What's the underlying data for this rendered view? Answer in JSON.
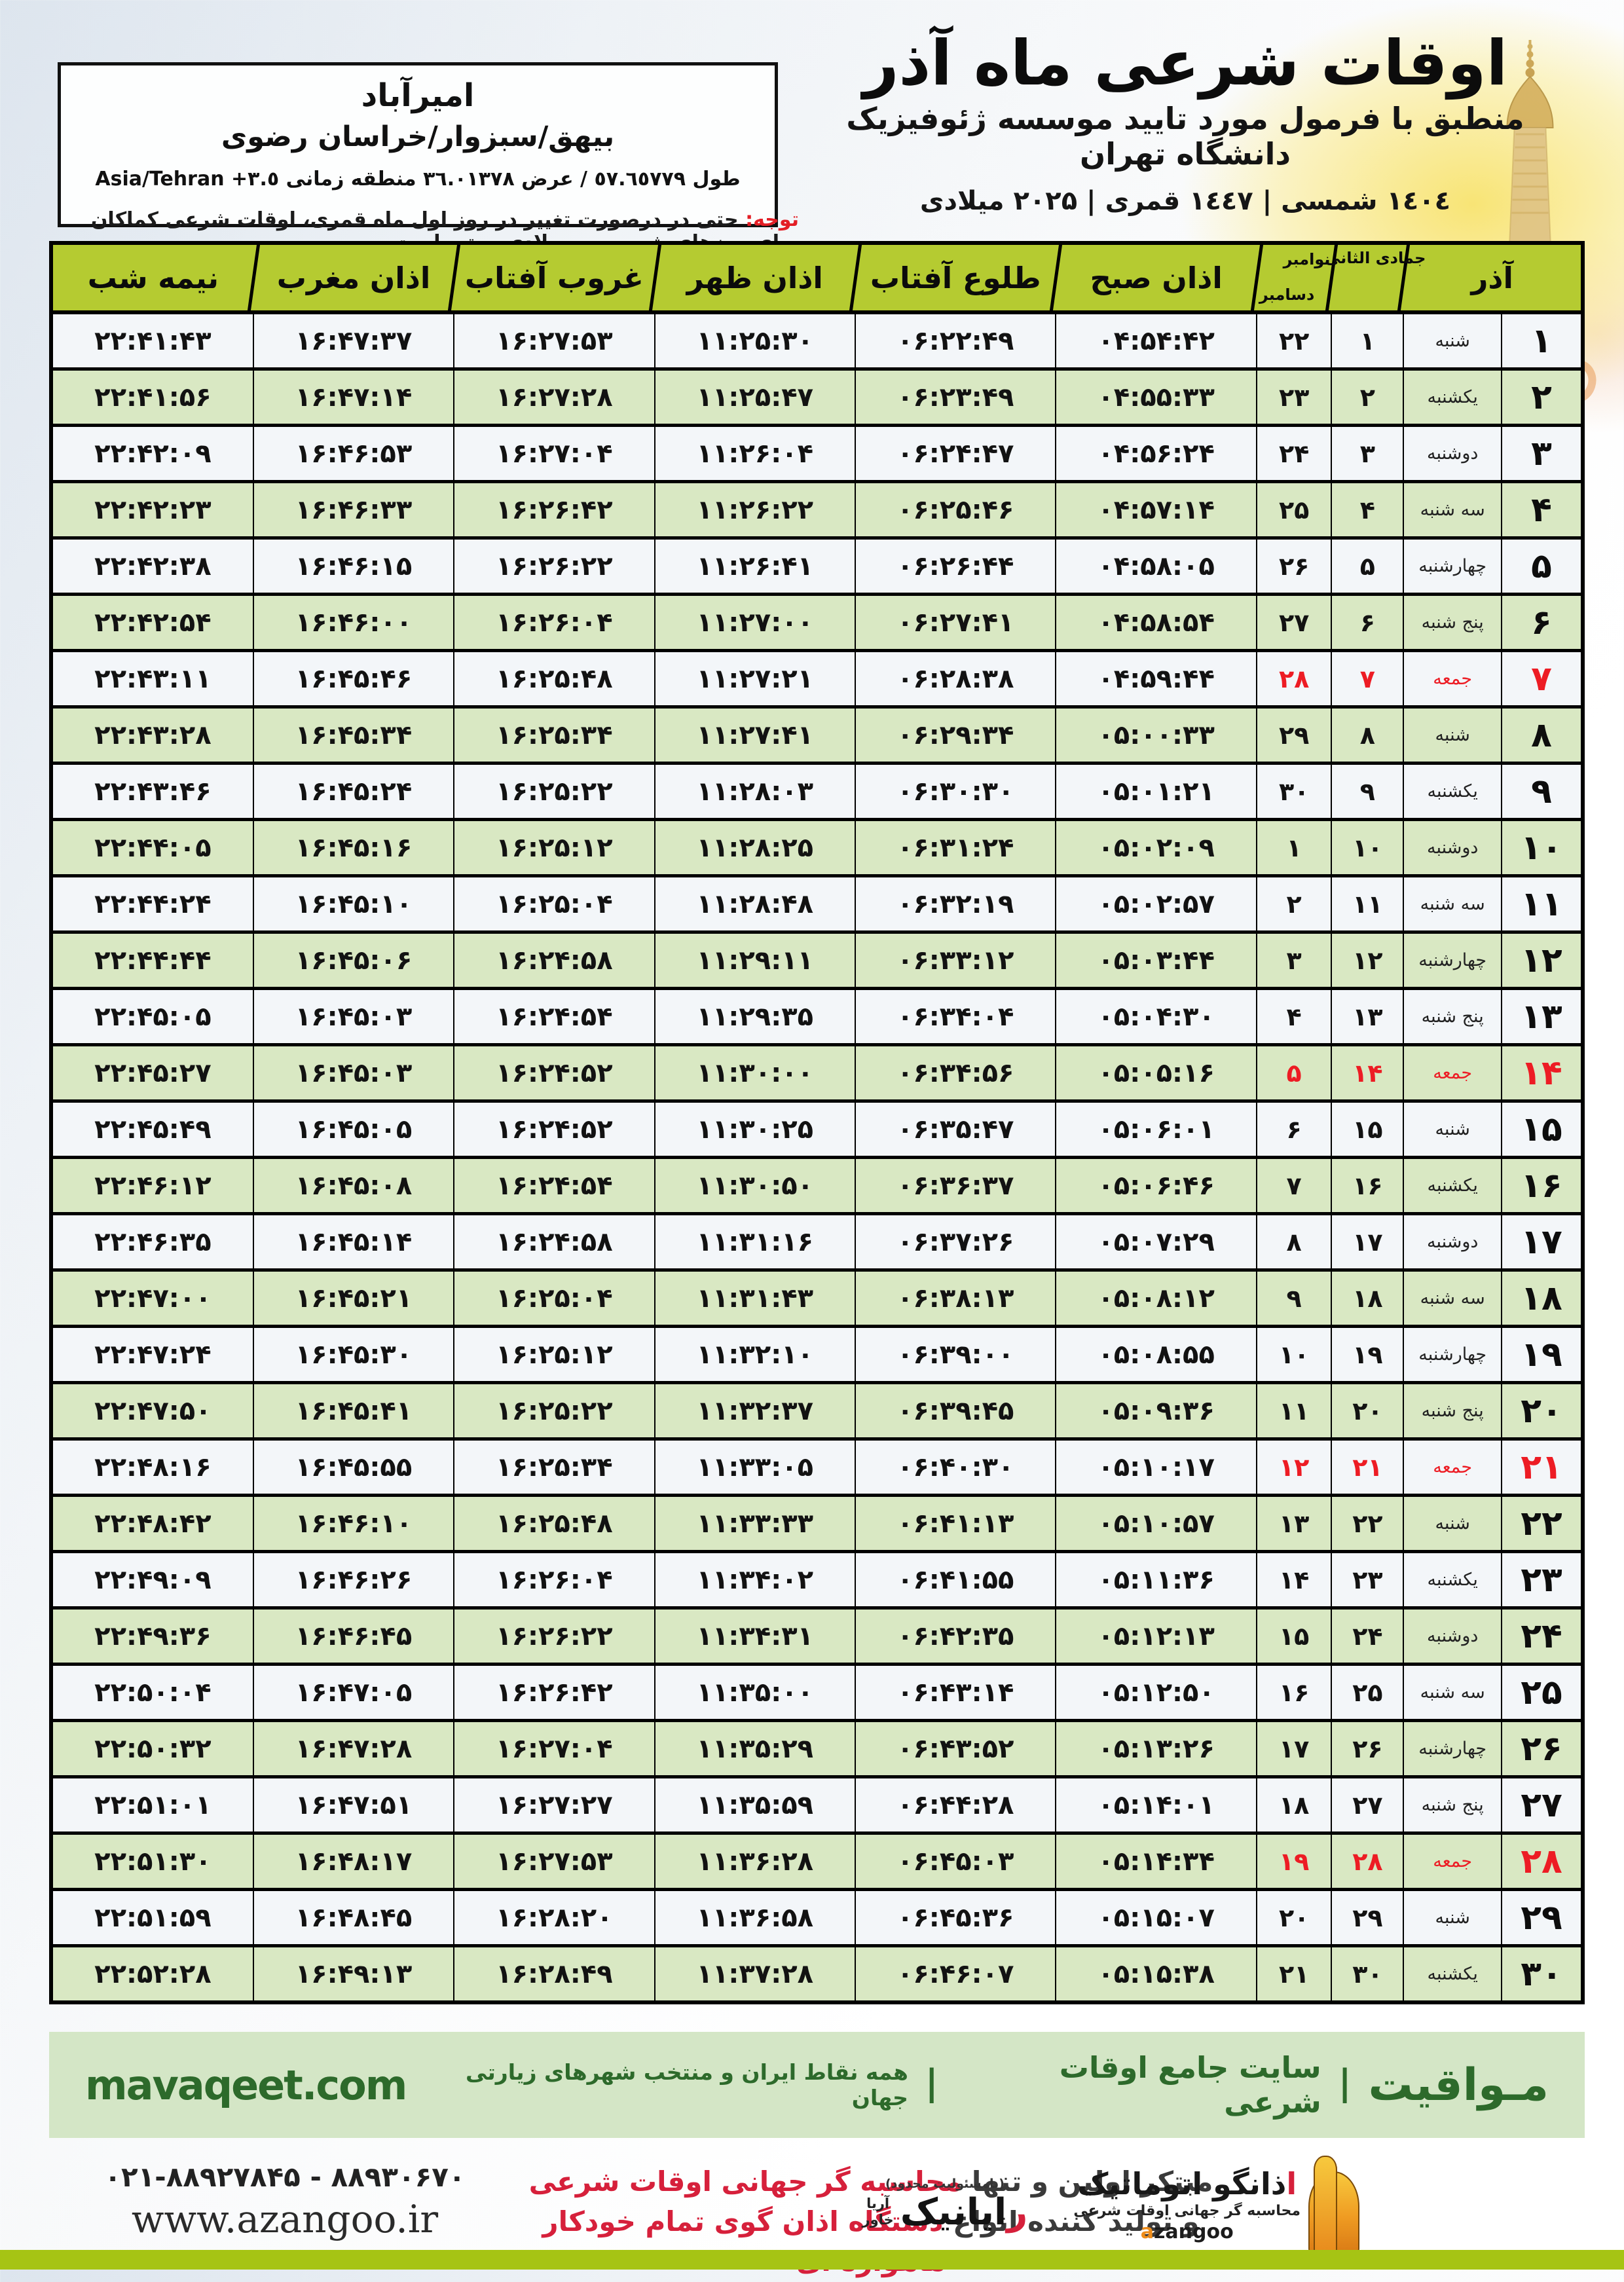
{
  "meta": {
    "title": "اوقات شرعی ماه آذر",
    "subtitle": "منطبق با فرمول مورد تایید موسسه ژئوفیزیک دانشگاه تهران",
    "dates": "۱٤۰٤ شمسی | ۱٤٤۷ قمری | ۲۰۲۵ میلادی"
  },
  "location": {
    "name": "امیرآباد",
    "region": "بیهق/سبزوار/خراسان رضوی",
    "coords_fa": "طول ٥٧.٦٥٧٧٩ / عرض ٣٦.٠١٣٧٨ منطقه زمانی",
    "tz": "Asia/Tehran +٣.٥"
  },
  "notice": {
    "label": "توجه:",
    "text": "حتی در درصورت تغییر در روز اول ماه قمری، اوقات شرعی کماکان برای روزهای شمسی و میلادی معتبر است."
  },
  "table": {
    "headers": {
      "azar": "آذر",
      "jumada_label": "جمادی الثانی",
      "nov_label": "نوامبر",
      "dec_label": "دسامبر",
      "sobh": "اذان صبح",
      "tolu": "طلوع آفتاب",
      "zohr": "اذان ظهر",
      "ghorub": "غروب آفتاب",
      "maghreb": "اذان مغرب",
      "nimeshab": "نیمه شب"
    },
    "rows": [
      {
        "azar": "۱",
        "weekday": "شنبه",
        "jumada": "۱",
        "greg": "۲۲",
        "sobh": "۰۴:۵۴:۴۲",
        "tolu": "۰۶:۲۲:۴۹",
        "zohr": "۱۱:۲۵:۳۰",
        "ghorub": "۱۶:۲۷:۵۳",
        "maghreb": "۱۶:۴۷:۳۷",
        "nimeshab": "۲۲:۴۱:۴۳",
        "friday": false
      },
      {
        "azar": "۲",
        "weekday": "یکشنبه",
        "jumada": "۲",
        "greg": "۲۳",
        "sobh": "۰۴:۵۵:۳۳",
        "tolu": "۰۶:۲۳:۴۹",
        "zohr": "۱۱:۲۵:۴۷",
        "ghorub": "۱۶:۲۷:۲۸",
        "maghreb": "۱۶:۴۷:۱۴",
        "nimeshab": "۲۲:۴۱:۵۶",
        "friday": false
      },
      {
        "azar": "۳",
        "weekday": "دوشنبه",
        "jumada": "۳",
        "greg": "۲۴",
        "sobh": "۰۴:۵۶:۲۴",
        "tolu": "۰۶:۲۴:۴۷",
        "zohr": "۱۱:۲۶:۰۴",
        "ghorub": "۱۶:۲۷:۰۴",
        "maghreb": "۱۶:۴۶:۵۳",
        "nimeshab": "۲۲:۴۲:۰۹",
        "friday": false
      },
      {
        "azar": "۴",
        "weekday": "سه شنبه",
        "jumada": "۴",
        "greg": "۲۵",
        "sobh": "۰۴:۵۷:۱۴",
        "tolu": "۰۶:۲۵:۴۶",
        "zohr": "۱۱:۲۶:۲۲",
        "ghorub": "۱۶:۲۶:۴۲",
        "maghreb": "۱۶:۴۶:۳۳",
        "nimeshab": "۲۲:۴۲:۲۳",
        "friday": false
      },
      {
        "azar": "۵",
        "weekday": "چهارشنبه",
        "jumada": "۵",
        "greg": "۲۶",
        "sobh": "۰۴:۵۸:۰۵",
        "tolu": "۰۶:۲۶:۴۴",
        "zohr": "۱۱:۲۶:۴۱",
        "ghorub": "۱۶:۲۶:۲۲",
        "maghreb": "۱۶:۴۶:۱۵",
        "nimeshab": "۲۲:۴۲:۳۸",
        "friday": false
      },
      {
        "azar": "۶",
        "weekday": "پنج شنبه",
        "jumada": "۶",
        "greg": "۲۷",
        "sobh": "۰۴:۵۸:۵۴",
        "tolu": "۰۶:۲۷:۴۱",
        "zohr": "۱۱:۲۷:۰۰",
        "ghorub": "۱۶:۲۶:۰۴",
        "maghreb": "۱۶:۴۶:۰۰",
        "nimeshab": "۲۲:۴۲:۵۴",
        "friday": false
      },
      {
        "azar": "۷",
        "weekday": "جمعه",
        "jumada": "۷",
        "greg": "۲۸",
        "sobh": "۰۴:۵۹:۴۴",
        "tolu": "۰۶:۲۸:۳۸",
        "zohr": "۱۱:۲۷:۲۱",
        "ghorub": "۱۶:۲۵:۴۸",
        "maghreb": "۱۶:۴۵:۴۶",
        "nimeshab": "۲۲:۴۳:۱۱",
        "friday": true
      },
      {
        "azar": "۸",
        "weekday": "شنبه",
        "jumada": "۸",
        "greg": "۲۹",
        "sobh": "۰۵:۰۰:۳۳",
        "tolu": "۰۶:۲۹:۳۴",
        "zohr": "۱۱:۲۷:۴۱",
        "ghorub": "۱۶:۲۵:۳۴",
        "maghreb": "۱۶:۴۵:۳۴",
        "nimeshab": "۲۲:۴۳:۲۸",
        "friday": false
      },
      {
        "azar": "۹",
        "weekday": "یکشنبه",
        "jumada": "۹",
        "greg": "۳۰",
        "sobh": "۰۵:۰۱:۲۱",
        "tolu": "۰۶:۳۰:۳۰",
        "zohr": "۱۱:۲۸:۰۳",
        "ghorub": "۱۶:۲۵:۲۲",
        "maghreb": "۱۶:۴۵:۲۴",
        "nimeshab": "۲۲:۴۳:۴۶",
        "friday": false
      },
      {
        "azar": "۱۰",
        "weekday": "دوشنبه",
        "jumada": "۱۰",
        "greg": "۱",
        "sobh": "۰۵:۰۲:۰۹",
        "tolu": "۰۶:۳۱:۲۴",
        "zohr": "۱۱:۲۸:۲۵",
        "ghorub": "۱۶:۲۵:۱۲",
        "maghreb": "۱۶:۴۵:۱۶",
        "nimeshab": "۲۲:۴۴:۰۵",
        "friday": false
      },
      {
        "azar": "۱۱",
        "weekday": "سه شنبه",
        "jumada": "۱۱",
        "greg": "۲",
        "sobh": "۰۵:۰۲:۵۷",
        "tolu": "۰۶:۳۲:۱۹",
        "zohr": "۱۱:۲۸:۴۸",
        "ghorub": "۱۶:۲۵:۰۴",
        "maghreb": "۱۶:۴۵:۱۰",
        "nimeshab": "۲۲:۴۴:۲۴",
        "friday": false
      },
      {
        "azar": "۱۲",
        "weekday": "چهارشنبه",
        "jumada": "۱۲",
        "greg": "۳",
        "sobh": "۰۵:۰۳:۴۴",
        "tolu": "۰۶:۳۳:۱۲",
        "zohr": "۱۱:۲۹:۱۱",
        "ghorub": "۱۶:۲۴:۵۸",
        "maghreb": "۱۶:۴۵:۰۶",
        "nimeshab": "۲۲:۴۴:۴۴",
        "friday": false
      },
      {
        "azar": "۱۳",
        "weekday": "پنج شنبه",
        "jumada": "۱۳",
        "greg": "۴",
        "sobh": "۰۵:۰۴:۳۰",
        "tolu": "۰۶:۳۴:۰۴",
        "zohr": "۱۱:۲۹:۳۵",
        "ghorub": "۱۶:۲۴:۵۴",
        "maghreb": "۱۶:۴۵:۰۳",
        "nimeshab": "۲۲:۴۵:۰۵",
        "friday": false
      },
      {
        "azar": "۱۴",
        "weekday": "جمعه",
        "jumada": "۱۴",
        "greg": "۵",
        "sobh": "۰۵:۰۵:۱۶",
        "tolu": "۰۶:۳۴:۵۶",
        "zohr": "۱۱:۳۰:۰۰",
        "ghorub": "۱۶:۲۴:۵۲",
        "maghreb": "۱۶:۴۵:۰۳",
        "nimeshab": "۲۲:۴۵:۲۷",
        "friday": true
      },
      {
        "azar": "۱۵",
        "weekday": "شنبه",
        "jumada": "۱۵",
        "greg": "۶",
        "sobh": "۰۵:۰۶:۰۱",
        "tolu": "۰۶:۳۵:۴۷",
        "zohr": "۱۱:۳۰:۲۵",
        "ghorub": "۱۶:۲۴:۵۲",
        "maghreb": "۱۶:۴۵:۰۵",
        "nimeshab": "۲۲:۴۵:۴۹",
        "friday": false
      },
      {
        "azar": "۱۶",
        "weekday": "یکشنبه",
        "jumada": "۱۶",
        "greg": "۷",
        "sobh": "۰۵:۰۶:۴۶",
        "tolu": "۰۶:۳۶:۳۷",
        "zohr": "۱۱:۳۰:۵۰",
        "ghorub": "۱۶:۲۴:۵۴",
        "maghreb": "۱۶:۴۵:۰۸",
        "nimeshab": "۲۲:۴۶:۱۲",
        "friday": false
      },
      {
        "azar": "۱۷",
        "weekday": "دوشنبه",
        "jumada": "۱۷",
        "greg": "۸",
        "sobh": "۰۵:۰۷:۲۹",
        "tolu": "۰۶:۳۷:۲۶",
        "zohr": "۱۱:۳۱:۱۶",
        "ghorub": "۱۶:۲۴:۵۸",
        "maghreb": "۱۶:۴۵:۱۴",
        "nimeshab": "۲۲:۴۶:۳۵",
        "friday": false
      },
      {
        "azar": "۱۸",
        "weekday": "سه شنبه",
        "jumada": "۱۸",
        "greg": "۹",
        "sobh": "۰۵:۰۸:۱۲",
        "tolu": "۰۶:۳۸:۱۳",
        "zohr": "۱۱:۳۱:۴۳",
        "ghorub": "۱۶:۲۵:۰۴",
        "maghreb": "۱۶:۴۵:۲۱",
        "nimeshab": "۲۲:۴۷:۰۰",
        "friday": false
      },
      {
        "azar": "۱۹",
        "weekday": "چهارشنبه",
        "jumada": "۱۹",
        "greg": "۱۰",
        "sobh": "۰۵:۰۸:۵۵",
        "tolu": "۰۶:۳۹:۰۰",
        "zohr": "۱۱:۳۲:۱۰",
        "ghorub": "۱۶:۲۵:۱۲",
        "maghreb": "۱۶:۴۵:۳۰",
        "nimeshab": "۲۲:۴۷:۲۴",
        "friday": false
      },
      {
        "azar": "۲۰",
        "weekday": "پنج شنبه",
        "jumada": "۲۰",
        "greg": "۱۱",
        "sobh": "۰۵:۰۹:۳۶",
        "tolu": "۰۶:۳۹:۴۵",
        "zohr": "۱۱:۳۲:۳۷",
        "ghorub": "۱۶:۲۵:۲۲",
        "maghreb": "۱۶:۴۵:۴۱",
        "nimeshab": "۲۲:۴۷:۵۰",
        "friday": false
      },
      {
        "azar": "۲۱",
        "weekday": "جمعه",
        "jumada": "۲۱",
        "greg": "۱۲",
        "sobh": "۰۵:۱۰:۱۷",
        "tolu": "۰۶:۴۰:۳۰",
        "zohr": "۱۱:۳۳:۰۵",
        "ghorub": "۱۶:۲۵:۳۴",
        "maghreb": "۱۶:۴۵:۵۵",
        "nimeshab": "۲۲:۴۸:۱۶",
        "friday": true
      },
      {
        "azar": "۲۲",
        "weekday": "شنبه",
        "jumada": "۲۲",
        "greg": "۱۳",
        "sobh": "۰۵:۱۰:۵۷",
        "tolu": "۰۶:۴۱:۱۳",
        "zohr": "۱۱:۳۳:۳۳",
        "ghorub": "۱۶:۲۵:۴۸",
        "maghreb": "۱۶:۴۶:۱۰",
        "nimeshab": "۲۲:۴۸:۴۲",
        "friday": false
      },
      {
        "azar": "۲۳",
        "weekday": "یکشنبه",
        "jumada": "۲۳",
        "greg": "۱۴",
        "sobh": "۰۵:۱۱:۳۶",
        "tolu": "۰۶:۴۱:۵۵",
        "zohr": "۱۱:۳۴:۰۲",
        "ghorub": "۱۶:۲۶:۰۴",
        "maghreb": "۱۶:۴۶:۲۶",
        "nimeshab": "۲۲:۴۹:۰۹",
        "friday": false
      },
      {
        "azar": "۲۴",
        "weekday": "دوشنبه",
        "jumada": "۲۴",
        "greg": "۱۵",
        "sobh": "۰۵:۱۲:۱۳",
        "tolu": "۰۶:۴۲:۳۵",
        "zohr": "۱۱:۳۴:۳۱",
        "ghorub": "۱۶:۲۶:۲۲",
        "maghreb": "۱۶:۴۶:۴۵",
        "nimeshab": "۲۲:۴۹:۳۶",
        "friday": false
      },
      {
        "azar": "۲۵",
        "weekday": "سه شنبه",
        "jumada": "۲۵",
        "greg": "۱۶",
        "sobh": "۰۵:۱۲:۵۰",
        "tolu": "۰۶:۴۳:۱۴",
        "zohr": "۱۱:۳۵:۰۰",
        "ghorub": "۱۶:۲۶:۴۲",
        "maghreb": "۱۶:۴۷:۰۵",
        "nimeshab": "۲۲:۵۰:۰۴",
        "friday": false
      },
      {
        "azar": "۲۶",
        "weekday": "چهارشنبه",
        "jumada": "۲۶",
        "greg": "۱۷",
        "sobh": "۰۵:۱۳:۲۶",
        "tolu": "۰۶:۴۳:۵۲",
        "zohr": "۱۱:۳۵:۲۹",
        "ghorub": "۱۶:۲۷:۰۴",
        "maghreb": "۱۶:۴۷:۲۸",
        "nimeshab": "۲۲:۵۰:۳۲",
        "friday": false
      },
      {
        "azar": "۲۷",
        "weekday": "پنج شنبه",
        "jumada": "۲۷",
        "greg": "۱۸",
        "sobh": "۰۵:۱۴:۰۱",
        "tolu": "۰۶:۴۴:۲۸",
        "zohr": "۱۱:۳۵:۵۹",
        "ghorub": "۱۶:۲۷:۲۷",
        "maghreb": "۱۶:۴۷:۵۱",
        "nimeshab": "۲۲:۵۱:۰۱",
        "friday": false
      },
      {
        "azar": "۲۸",
        "weekday": "جمعه",
        "jumada": "۲۸",
        "greg": "۱۹",
        "sobh": "۰۵:۱۴:۳۴",
        "tolu": "۰۶:۴۵:۰۳",
        "zohr": "۱۱:۳۶:۲۸",
        "ghorub": "۱۶:۲۷:۵۳",
        "maghreb": "۱۶:۴۸:۱۷",
        "nimeshab": "۲۲:۵۱:۳۰",
        "friday": true
      },
      {
        "azar": "۲۹",
        "weekday": "شنبه",
        "jumada": "۲۹",
        "greg": "۲۰",
        "sobh": "۰۵:۱۵:۰۷",
        "tolu": "۰۶:۴۵:۳۶",
        "zohr": "۱۱:۳۶:۵۸",
        "ghorub": "۱۶:۲۸:۲۰",
        "maghreb": "۱۶:۴۸:۴۵",
        "nimeshab": "۲۲:۵۱:۵۹",
        "friday": false
      },
      {
        "azar": "۳۰",
        "weekday": "یکشنبه",
        "jumada": "۳۰",
        "greg": "۲۱",
        "sobh": "۰۵:۱۵:۳۸",
        "tolu": "۰۶:۴۶:۰۷",
        "zohr": "۱۱:۳۷:۲۸",
        "ghorub": "۱۶:۲۸:۴۹",
        "maghreb": "۱۶:۴۹:۱۳",
        "nimeshab": "۲۲:۵۲:۲۸",
        "friday": false
      }
    ]
  },
  "mavaqeet": {
    "brand": "مـواقیت",
    "separator": "|",
    "tagline1": "سایت جامع اوقات شرعی",
    "tagline2": "همه نقاط ایران و منتخب شهرهای زیارتی جهان",
    "url": "mavaqeet.com"
  },
  "footer": {
    "phone": "۰۲۱-۸۸۹۲۷۸۴۵ - ۸۸۹۳۰۶۷۰",
    "website": "www.azangoo.ir",
    "line1_dark": "مبتکر اولین و تنها",
    "line1_red": "محاسبه گر جهانی اوقات شرعی",
    "line2_dark": "و تولید کننده انواع",
    "line2_red": "دستگاه اذان گوی تمام خودکار ماهواره ای",
    "azangoo": {
      "red_init": "ا",
      "rest": "ذانگو اتوماتیک",
      "tagline": "محاسبه گر جهانی اوقات شرعی",
      "latin_init": "a",
      "latin_rest": "zangoo"
    },
    "rayanik": {
      "note": "(بامسئولیت محدود)",
      "red_init": "ر",
      "rest": "ایانیک",
      "small1": "آریا",
      "small2": "خاور"
    }
  },
  "colors": {
    "header_green": "#b5cb31",
    "row_green": "#d9e8c3",
    "friday_red": "#ed1c24",
    "band_bg": "#d4e6c6",
    "band_text": "#2d6a2b",
    "bottom_band": "#a6c414",
    "notice_red": "#e31e25"
  }
}
